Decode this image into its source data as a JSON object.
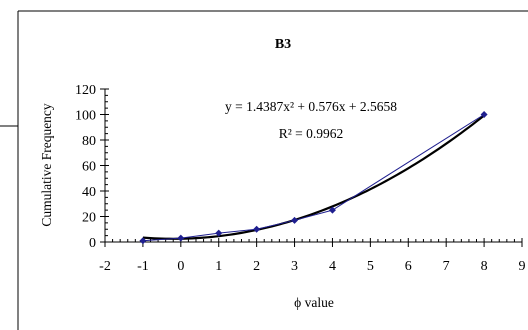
{
  "chart_data": {
    "type": "scatter",
    "title": "B3",
    "xlabel": "ϕ value",
    "ylabel": "Cumulative Frequency",
    "xlim": [
      -2,
      9
    ],
    "ylim": [
      0,
      120
    ],
    "x_ticks": [
      -2,
      -1,
      0,
      1,
      2,
      3,
      4,
      5,
      6,
      7,
      8,
      9
    ],
    "y_ticks": [
      0,
      20,
      40,
      60,
      80,
      100,
      120
    ],
    "legend": "none",
    "grid": false,
    "series": [
      {
        "values": [
          {
            "x": -1,
            "y": 1
          },
          {
            "x": 0,
            "y": 3
          },
          {
            "x": 1,
            "y": 7
          },
          {
            "x": 2,
            "y": 10
          },
          {
            "x": 3,
            "y": 17
          },
          {
            "x": 4,
            "y": 25
          },
          {
            "x": 8,
            "y": 100
          }
        ],
        "color": "#1f1f8f",
        "marker": "diamond"
      }
    ],
    "trendline": {
      "kind": "polynomial-2",
      "coefficients": [
        1.4387,
        0.576,
        2.5658
      ],
      "color": "#000000"
    },
    "annotations": {
      "equation": "y = 1.4387x² + 0.576x + 2.5658",
      "r_squared": "R² = 0.9962"
    }
  }
}
